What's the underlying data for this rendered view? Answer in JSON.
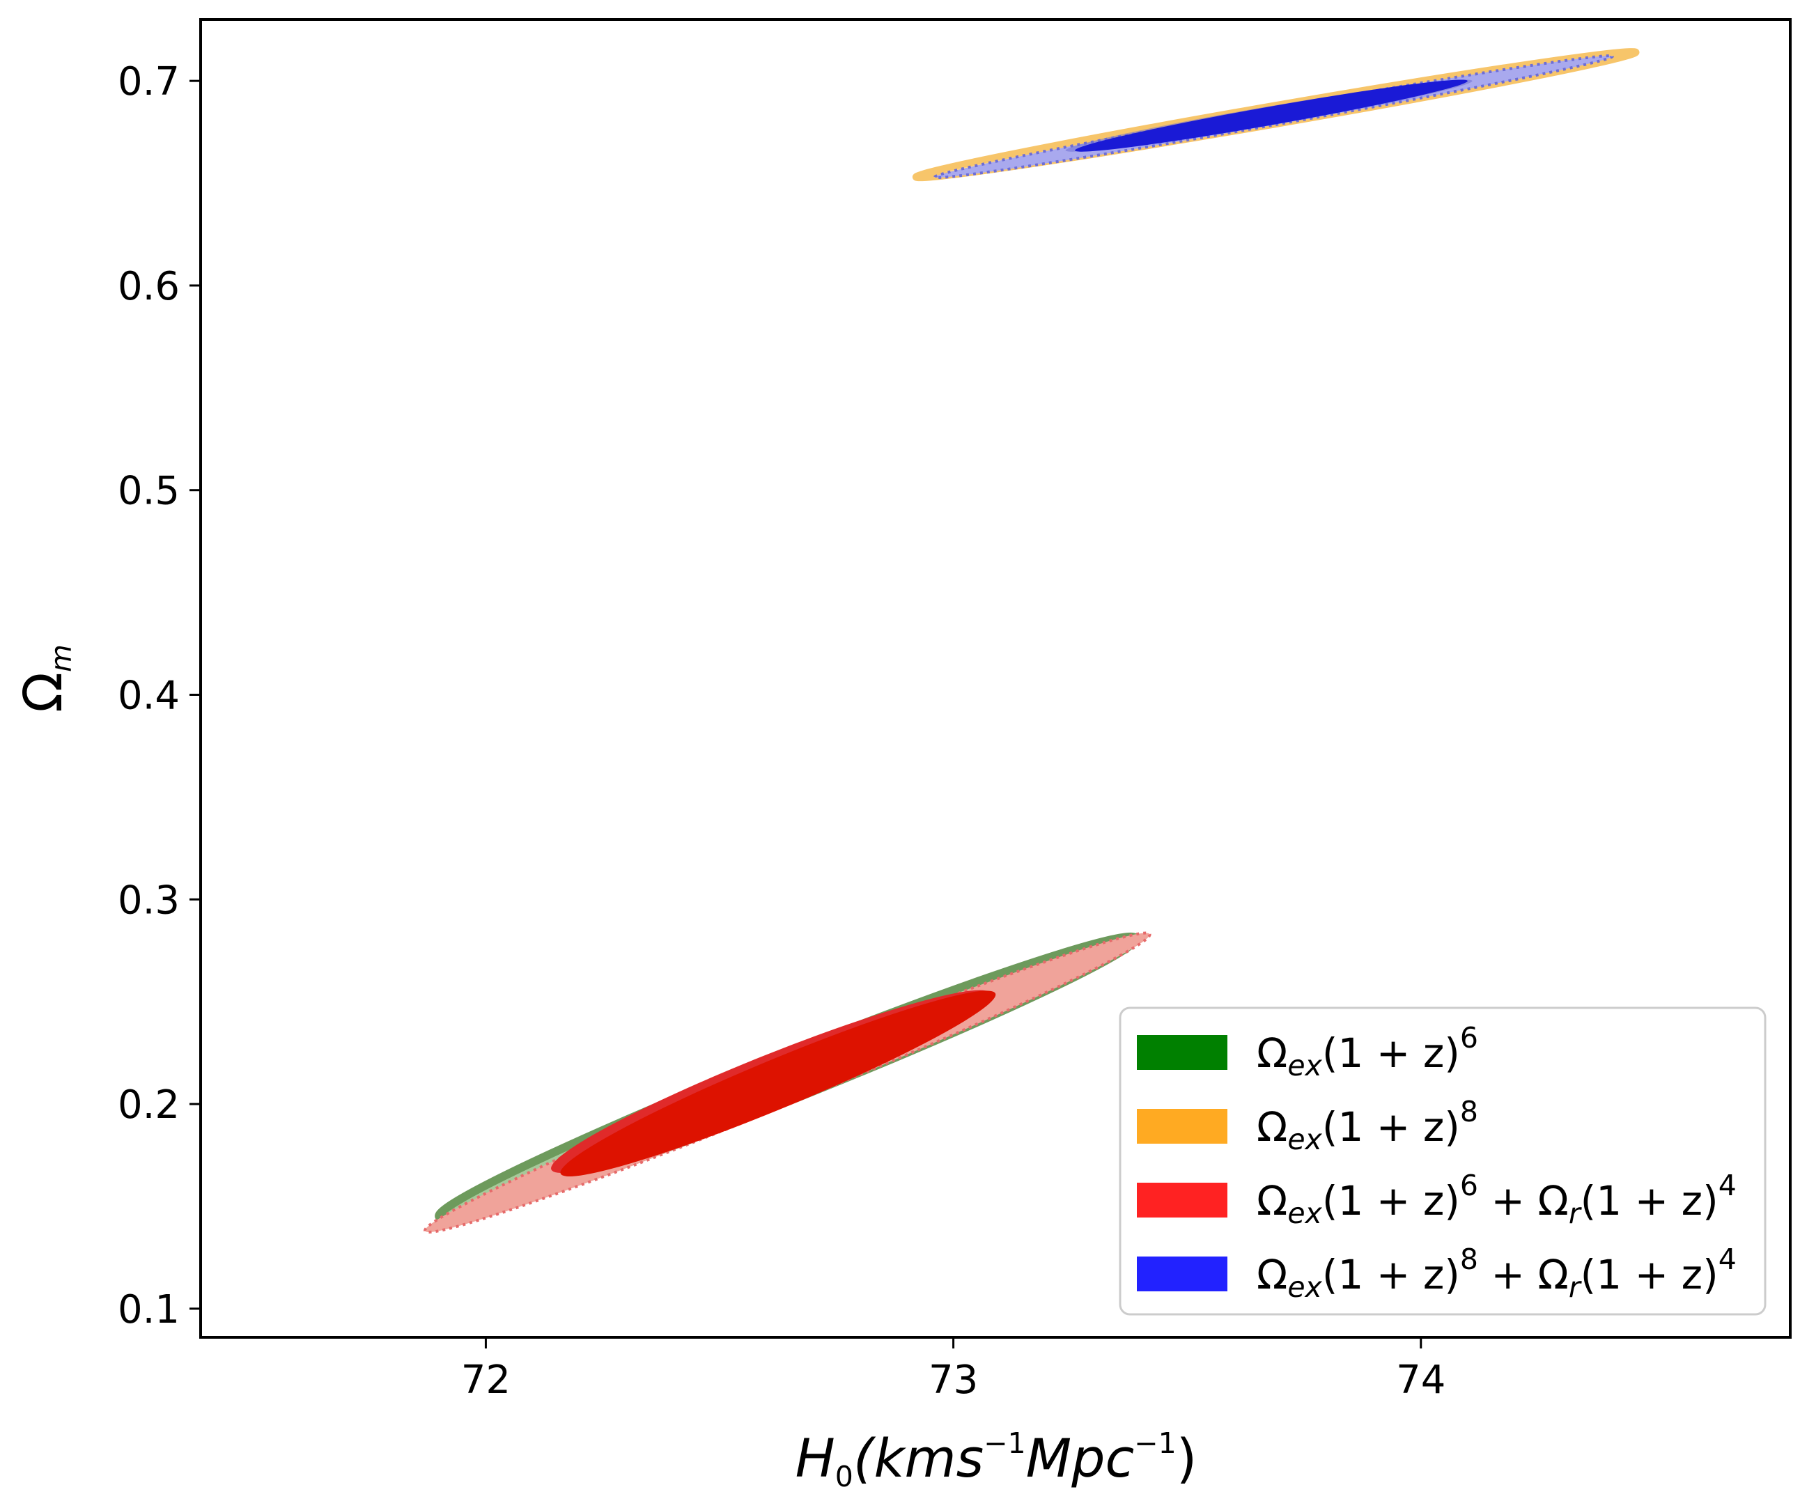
{
  "chart_data": {
    "type": "contour",
    "title": "",
    "xlabel": "H0(kms^-1Mpc^-1)",
    "ylabel": "Ωm",
    "xlim": [
      71.39,
      74.79
    ],
    "ylim": [
      0.086,
      0.73
    ],
    "x_ticks": [
      {
        "value": 72,
        "label": "72"
      },
      {
        "value": 73,
        "label": "73"
      },
      {
        "value": 74,
        "label": "74"
      }
    ],
    "y_ticks": [
      {
        "value": 0.1,
        "label": "0.1"
      },
      {
        "value": 0.2,
        "label": "0.2"
      },
      {
        "value": 0.3,
        "label": "0.3"
      },
      {
        "value": 0.4,
        "label": "0.4"
      },
      {
        "value": 0.5,
        "label": "0.5"
      },
      {
        "value": 0.6,
        "label": "0.6"
      },
      {
        "value": 0.7,
        "label": "0.7"
      }
    ],
    "grid": false,
    "legend_position": "lower-right",
    "series": [
      {
        "name": "Ωex(1+z)^6",
        "color": "#008000",
        "contours": {
          "p1": [
            71.9,
            0.145
          ],
          "p2": [
            73.39,
            0.281
          ],
          "inner_p1": [
            72.14,
            0.168
          ],
          "inner_p2": [
            73.08,
            0.254
          ],
          "outer_halfwidth": 0.011,
          "inner_halfwidth": 0.013
        }
      },
      {
        "name": "Ωex(1+z)^8",
        "color": "#FFA500",
        "contours": {
          "p1": [
            72.92,
            0.653
          ],
          "p2": [
            74.46,
            0.714
          ],
          "inner_p1": [
            73.24,
            0.666
          ],
          "inner_p2": [
            74.11,
            0.7
          ],
          "outer_halfwidth": 0.0045,
          "inner_halfwidth": 0.0045
        }
      },
      {
        "name": "Ωex(1+z)^6+Ωr(1+z)^4",
        "color": "#FF0000",
        "contours": {
          "p1": [
            71.87,
            0.138
          ],
          "p2": [
            73.42,
            0.283
          ],
          "inner_p1": [
            72.16,
            0.166
          ],
          "inner_p2": [
            73.09,
            0.254
          ],
          "outer_halfwidth": 0.01,
          "inner_halfwidth": 0.012
        }
      },
      {
        "name": "Ωex(1+z)^8+Ωr(1+z)^4",
        "color": "#0000FF",
        "contours": {
          "p1": [
            72.96,
            0.653
          ],
          "p2": [
            74.41,
            0.712
          ],
          "inner_p1": [
            73.26,
            0.666
          ],
          "inner_p2": [
            74.1,
            0.7
          ],
          "outer_halfwidth": 0.004,
          "inner_halfwidth": 0.0045
        }
      }
    ]
  },
  "labels": {
    "x_h": "H",
    "x_sub": "0",
    "x_body1": "(kms",
    "x_sup1": "−1",
    "x_body2": "Mpc",
    "x_sup2": "−1",
    "x_close": ")",
    "y_main": "Ω",
    "y_sub": "m"
  },
  "legend": {
    "items": [
      {
        "omega": "Ω",
        "sub": "ex",
        "body": "(1 + z)",
        "sup": "6",
        "extra": "",
        "omega2": "",
        "sub2": "",
        "body2": "",
        "sup2": ""
      },
      {
        "omega": "Ω",
        "sub": "ex",
        "body": "(1 + z)",
        "sup": "8",
        "extra": "",
        "omega2": "",
        "sub2": "",
        "body2": "",
        "sup2": ""
      },
      {
        "omega": "Ω",
        "sub": "ex",
        "body": "(1 + z)",
        "sup": "6",
        "extra": " + ",
        "omega2": "Ω",
        "sub2": "r",
        "body2": "(1 + z)",
        "sup2": "4"
      },
      {
        "omega": "Ω",
        "sub": "ex",
        "body": "(1 + z)",
        "sup": "8",
        "extra": " + ",
        "omega2": "Ω",
        "sub2": "r",
        "body2": "(1 + z)",
        "sup2": "4"
      }
    ],
    "colors": [
      "#008000",
      "#FFAA22",
      "#FF2222",
      "#2222FF"
    ]
  }
}
